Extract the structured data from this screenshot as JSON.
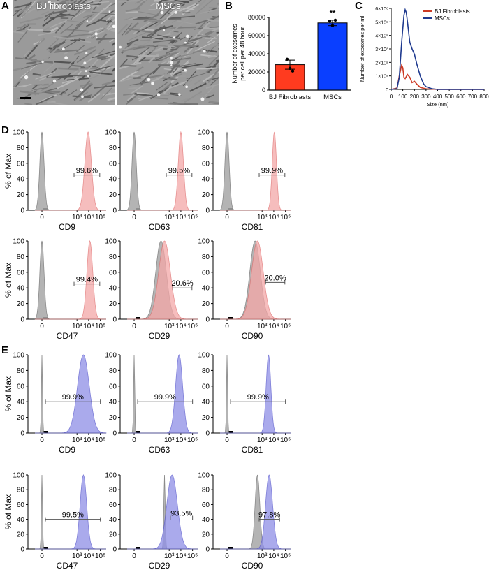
{
  "panel_labels": {
    "a": "A",
    "b": "B",
    "c": "C",
    "d": "D",
    "e": "E"
  },
  "micrographs": [
    {
      "label": "BJ fibroblasts"
    },
    {
      "label": "MSCs"
    }
  ],
  "histogram_common": {
    "ylabel": "% of Max",
    "y_ticks": [
      "0",
      "20",
      "40",
      "60",
      "80",
      "100"
    ],
    "x_ticks": [
      "0",
      "10³",
      "10⁴",
      "10⁵"
    ]
  },
  "colors": {
    "fibroblast": "#f4a7a7",
    "fibroblast_stroke": "#e06e6e",
    "msc": "#8e8ee6",
    "msc_stroke": "#5555cc",
    "isotype": "#a8a8a8",
    "isotype_stroke": "#777777",
    "bar_fibro": "#ff3b1f",
    "bar_msc": "#0a3fff",
    "line_fibro": "#cc3a24",
    "line_msc": "#1f3a8f"
  },
  "chart_data": [
    {
      "id": "B",
      "type": "bar",
      "categories": [
        "BJ Fibroblasts",
        "MSCs"
      ],
      "values": [
        28000,
        74000
      ],
      "errors": [
        5000,
        3000
      ],
      "points": [
        [
          34000,
          24000,
          21000
        ],
        [
          76000,
          71000,
          77000
        ]
      ],
      "ylabel": "Number of exosomes per cell per 48 hour",
      "yticks": [
        "0",
        "20000",
        "40000",
        "60000",
        "80000"
      ],
      "ylim": [
        0,
        80000
      ],
      "annotation": "**"
    },
    {
      "id": "C",
      "type": "line",
      "xlabel": "Size (nm)",
      "ylabel": "Number of exosomes per ml",
      "xticks": [
        "0",
        "100",
        "200",
        "300",
        "400",
        "500",
        "600",
        "700",
        "800"
      ],
      "yticks": [
        "0",
        "1×10⁸",
        "2×10⁸",
        "3×10⁸",
        "4×10⁸",
        "5×10⁸",
        "6×10⁸"
      ],
      "xlim": [
        0,
        800
      ],
      "ylim": [
        0,
        600000000
      ],
      "legend": "top-right",
      "series": [
        {
          "name": "BJ Fibroblasts",
          "x": [
            0,
            50,
            70,
            90,
            100,
            110,
            120,
            140,
            160,
            180,
            200,
            220,
            250,
            300,
            400,
            500,
            600,
            700,
            800
          ],
          "y": [
            0,
            10000000,
            100000000,
            180000000,
            160000000,
            90000000,
            80000000,
            110000000,
            90000000,
            50000000,
            60000000,
            40000000,
            15000000,
            4000000,
            0,
            0,
            0,
            0,
            0
          ]
        },
        {
          "name": "MSCs",
          "x": [
            0,
            50,
            70,
            90,
            100,
            110,
            120,
            130,
            140,
            160,
            180,
            200,
            220,
            250,
            280,
            300,
            350,
            400,
            500,
            600,
            700,
            800
          ],
          "y": [
            0,
            5000000,
            90000000,
            350000000,
            450000000,
            550000000,
            590000000,
            570000000,
            500000000,
            350000000,
            300000000,
            260000000,
            190000000,
            100000000,
            40000000,
            20000000,
            5000000,
            0,
            0,
            0,
            0,
            0
          ]
        }
      ]
    },
    {
      "id": "D",
      "type": "area",
      "marker": "CD9",
      "gate_label": "99.6%",
      "color_group": "fibroblast",
      "sample_peak": 3.95,
      "sample_width": 0.28,
      "isotype_peak": 0,
      "isotype_width": 0.18,
      "gate_range": [
        2.75,
        4.95
      ],
      "gate_y": 45
    },
    {
      "id": "D",
      "type": "area",
      "marker": "CD63",
      "gate_label": "99.5%",
      "color_group": "fibroblast",
      "sample_peak": 4.0,
      "sample_width": 0.22,
      "isotype_peak": 0,
      "isotype_width": 0.18,
      "gate_range": [
        2.75,
        4.95
      ],
      "gate_y": 45
    },
    {
      "id": "D",
      "type": "area",
      "marker": "CD81",
      "gate_label": "99.9%",
      "color_group": "fibroblast",
      "sample_peak": 4.05,
      "sample_width": 0.18,
      "isotype_peak": 0,
      "isotype_width": 0.18,
      "gate_range": [
        2.75,
        4.95
      ],
      "gate_y": 45
    },
    {
      "id": "D",
      "type": "area",
      "marker": "CD47",
      "gate_label": "99.4%",
      "color_group": "fibroblast",
      "sample_peak": 4.1,
      "sample_width": 0.25,
      "isotype_peak": 0,
      "isotype_width": 0.18,
      "gate_range": [
        2.75,
        4.95
      ],
      "gate_y": 45
    },
    {
      "id": "D",
      "type": "area",
      "marker": "CD29",
      "gate_label": "20.6%",
      "color_group": "fibroblast",
      "sample_peak": 2.6,
      "sample_width": 0.5,
      "isotype_peak": 2.3,
      "isotype_width": 0.45,
      "gate_range": [
        3.3,
        4.95
      ],
      "gate_y": 40
    },
    {
      "id": "D",
      "type": "area",
      "marker": "CD90",
      "gate_label": "20.0%",
      "color_group": "fibroblast",
      "sample_peak": 2.6,
      "sample_width": 0.5,
      "isotype_peak": 2.4,
      "isotype_width": 0.45,
      "gate_range": [
        3.3,
        4.95
      ],
      "gate_y": 47
    },
    {
      "id": "E",
      "type": "area",
      "marker": "CD9",
      "gate_label": "99.9%",
      "color_group": "msc",
      "sample_peak": 3.55,
      "sample_width": 0.5,
      "isotype_peak": 0,
      "isotype_width": 0.05,
      "gate_range": [
        0.3,
        5.0
      ],
      "gate_y": 40
    },
    {
      "id": "E",
      "type": "area",
      "marker": "CD63",
      "gate_label": "99.9%",
      "color_group": "msc",
      "sample_peak": 3.85,
      "sample_width": 0.3,
      "isotype_peak": 0,
      "isotype_width": 0.05,
      "gate_range": [
        0.3,
        5.0
      ],
      "gate_y": 40
    },
    {
      "id": "E",
      "type": "area",
      "marker": "CD81",
      "gate_label": "99.9%",
      "color_group": "msc",
      "sample_peak": 3.55,
      "sample_width": 0.2,
      "isotype_peak": 0,
      "isotype_width": 0.05,
      "gate_range": [
        0.3,
        5.0
      ],
      "gate_y": 40
    },
    {
      "id": "E",
      "type": "area",
      "marker": "CD47",
      "gate_label": "99.5%",
      "color_group": "msc",
      "sample_peak": 3.55,
      "sample_width": 0.28,
      "isotype_peak": 0,
      "isotype_width": 0.05,
      "gate_range": [
        0.3,
        5.0
      ],
      "gate_y": 40
    },
    {
      "id": "E",
      "type": "area",
      "marker": "CD29",
      "gate_label": "93.5%",
      "color_group": "msc",
      "sample_peak": 3.25,
      "sample_width": 0.45,
      "isotype_peak": 2.6,
      "isotype_width": 0.06,
      "gate_range": [
        3.1,
        5.0
      ],
      "gate_y": 42
    },
    {
      "id": "E",
      "type": "area",
      "marker": "CD90",
      "gate_label": "97.8%",
      "color_group": "msc",
      "sample_peak": 3.6,
      "sample_width": 0.3,
      "isotype_peak": 2.6,
      "isotype_width": 0.2,
      "gate_range": [
        2.75,
        4.5
      ],
      "gate_y": 40
    }
  ]
}
